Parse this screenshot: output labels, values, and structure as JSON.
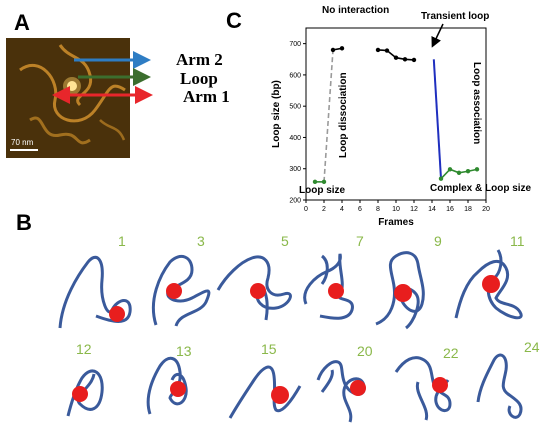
{
  "panels": {
    "a": {
      "letter": "A",
      "scale_bar": "70 nm",
      "arms": [
        "Arm 2",
        "Loop",
        "Arm 1"
      ]
    },
    "b": {
      "letter": "B",
      "frames_row1": [
        "1",
        "3",
        "5",
        "7",
        "9",
        "11"
      ],
      "frames_row2": [
        "12",
        "13",
        "15",
        "20",
        "22",
        "24"
      ]
    },
    "c": {
      "letter": "C",
      "annotations": {
        "no_interaction": "No interaction",
        "transient_loop": "Transient loop",
        "loop_dissociation": "Loop dissociation",
        "loop_association": "Loop association",
        "loop_size": "Loop size",
        "complex_loop_size": "Complex & Loop size"
      }
    }
  },
  "colors": {
    "arm2_arrow": "#2e7dc4",
    "loop_arrow": "#3c6e2e",
    "arm1_arrow": "#e8262b",
    "green_series": "#2f8a2f",
    "black_series": "#000000",
    "dissociation": "#9a9a9a",
    "association": "#1f2fbf",
    "dna_trace": "#3a5a9b",
    "protein": "#e81e1e",
    "frame_label": "#8ab84a"
  },
  "chart_data": {
    "type": "line",
    "title": "",
    "xlabel": "Frames",
    "ylabel": "Loop size (bp)",
    "xlim": [
      0,
      20
    ],
    "ylim": [
      200,
      750
    ],
    "xticks": [
      0,
      2,
      4,
      6,
      8,
      10,
      12,
      14,
      16,
      18,
      20
    ],
    "yticks": [
      200,
      300,
      400,
      500,
      600,
      700
    ],
    "series": [
      {
        "color": "green",
        "x": [
          1,
          2
        ],
        "y": [
          258,
          258
        ]
      },
      {
        "color": "black",
        "x": [
          3,
          4
        ],
        "y": [
          680,
          685
        ]
      },
      {
        "color": "black",
        "x": [
          8,
          9,
          10,
          11,
          12
        ],
        "y": [
          680,
          678,
          655,
          650,
          648
        ]
      },
      {
        "color": "green",
        "x": [
          15,
          16,
          17,
          18,
          19
        ],
        "y": [
          268,
          298,
          287,
          292,
          298
        ]
      }
    ],
    "transitions": [
      {
        "label": "Loop dissociation",
        "style": "dashed",
        "x": [
          2,
          3
        ],
        "y": [
          258,
          680
        ]
      },
      {
        "label": "Loop association",
        "style": "solid",
        "x": [
          14.2,
          15
        ],
        "y": [
          650,
          268
        ]
      }
    ]
  }
}
